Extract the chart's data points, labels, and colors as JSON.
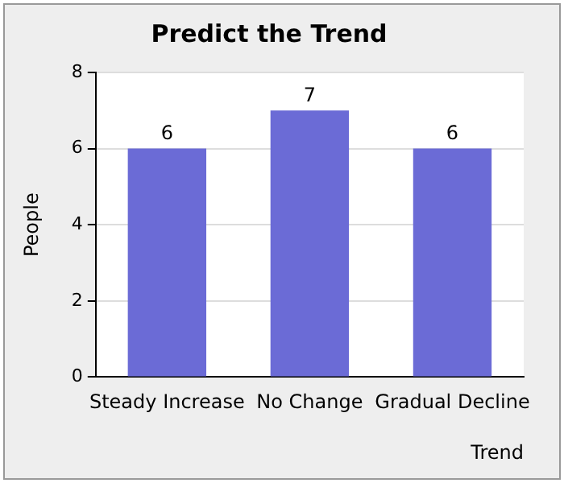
{
  "chart_data": {
    "type": "bar",
    "title": "Predict the Trend",
    "xlabel": "Trend",
    "ylabel": "People",
    "categories": [
      "Steady Increase",
      "No Change",
      "Gradual Decline"
    ],
    "values": [
      6,
      7,
      6
    ],
    "color": "#6b6bd6",
    "ylim": [
      0,
      8
    ],
    "yticks": [
      0,
      2,
      4,
      6,
      8
    ],
    "grid": "y",
    "data_labels": true
  }
}
